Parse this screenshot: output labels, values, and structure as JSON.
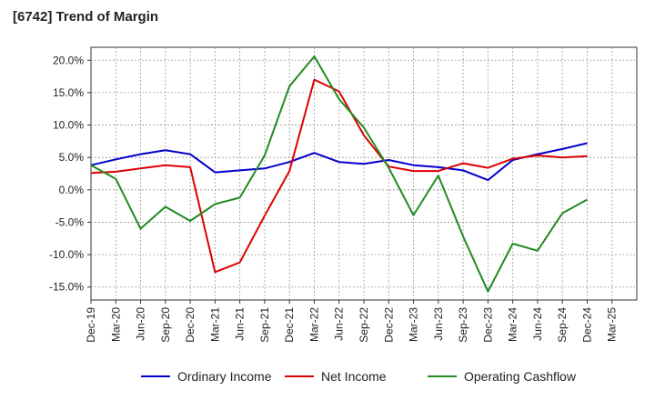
{
  "chart_data": {
    "type": "line",
    "title": "[6742]  Trend of Margin",
    "xlabel": "",
    "ylabel": "",
    "x": [
      "Dec-19",
      "Mar-20",
      "Jun-20",
      "Sep-20",
      "Dec-20",
      "Mar-21",
      "Jun-21",
      "Sep-21",
      "Dec-21",
      "Mar-22",
      "Jun-22",
      "Sep-22",
      "Dec-22",
      "Mar-23",
      "Jun-23",
      "Sep-23",
      "Dec-23",
      "Mar-24",
      "Jun-24",
      "Sep-24",
      "Dec-24",
      "Mar-25"
    ],
    "ylim": [
      -17.0,
      22.0
    ],
    "yticks": [
      -15,
      -10,
      -5,
      0,
      5,
      10,
      15,
      20
    ],
    "ytick_labels": [
      "-15.0%",
      "-10.0%",
      "-5.0%",
      "0.0%",
      "5.0%",
      "10.0%",
      "15.0%",
      "20.0%"
    ],
    "grid": true,
    "legend_position": "bottom",
    "series": [
      {
        "name": "Ordinary Income",
        "color": "#0000cc",
        "values": [
          3.8,
          4.7,
          5.5,
          6.1,
          5.5,
          2.7,
          3.0,
          3.3,
          4.3,
          5.7,
          4.3,
          4.0,
          4.6,
          3.8,
          3.5,
          3.0,
          1.5,
          4.6,
          5.5,
          6.3,
          7.2,
          null
        ]
      },
      {
        "name": "Net Income",
        "color": "#dd0000",
        "values": [
          2.6,
          2.8,
          3.3,
          3.8,
          3.5,
          -12.7,
          -11.2,
          -4.0,
          2.9,
          17.0,
          15.2,
          8.4,
          3.6,
          2.9,
          2.9,
          4.1,
          3.4,
          4.8,
          5.3,
          5.0,
          5.2,
          null
        ]
      },
      {
        "name": "Operating Cashflow",
        "color": "#228b22",
        "values": [
          3.8,
          1.7,
          -6.0,
          -2.6,
          -4.8,
          -2.2,
          -1.2,
          5.3,
          16.0,
          20.6,
          14.0,
          9.6,
          3.4,
          -3.9,
          2.2,
          -7.2,
          -15.7,
          -8.3,
          -9.4,
          -3.6,
          -1.5,
          null
        ]
      }
    ]
  }
}
